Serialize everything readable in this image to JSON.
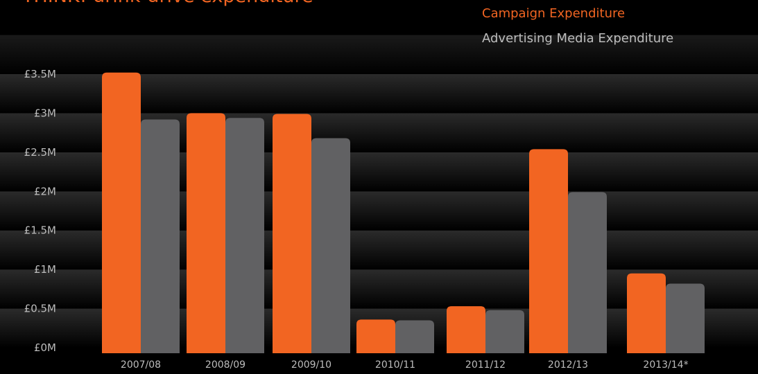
{
  "colors": {
    "background": "#000000",
    "campaign": "#f26522",
    "media": "#616163",
    "text": "#bdbdbd"
  },
  "chart_data": {
    "type": "bar",
    "title": "THINK! drink-drive expenditure",
    "categories": [
      "2007/08",
      "2008/09",
      "2009/10",
      "2010/11",
      "2011/12",
      "2012/13",
      "2013/14*"
    ],
    "series": [
      {
        "name": "Campaign Expenditure",
        "color": "#f26522",
        "values": [
          3.52,
          3.0,
          2.99,
          0.36,
          0.53,
          2.54,
          0.95
        ]
      },
      {
        "name": "Advertising Media Expenditure",
        "color": "#616163",
        "values": [
          2.92,
          2.94,
          2.68,
          0.35,
          0.48,
          1.99,
          0.82
        ]
      }
    ],
    "yticks": [
      "£0M",
      "£0.5M",
      "£1M",
      "£1.5M",
      "£2M",
      "£2.5M",
      "£3M",
      "£3.5M"
    ],
    "ylim": [
      0,
      3.5
    ],
    "legend_position": "top-right",
    "grid": true
  }
}
